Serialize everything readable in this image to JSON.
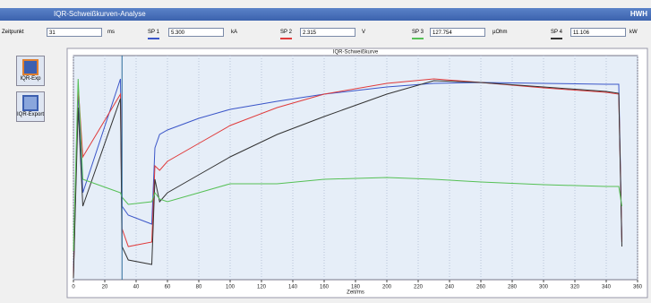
{
  "window": {
    "title": "IQR-Schweißkurven-Analyse",
    "corner": "HWH"
  },
  "fields": [
    {
      "label": "Zeitpunkt",
      "value": "31",
      "unit": "ms"
    },
    {
      "label": "SP 1",
      "value": "5.300",
      "unit": "kA"
    },
    {
      "label": "SP 2",
      "value": "2.315",
      "unit": "V"
    },
    {
      "label": "SP 3",
      "value": "127.754",
      "unit": "µOhm"
    },
    {
      "label": "SP 4",
      "value": "11.106",
      "unit": "kW"
    }
  ],
  "buttons": [
    "IQR-Exp",
    "IQR-Export"
  ],
  "chart_data": {
    "type": "line",
    "title": "IQR-Schweißkurve",
    "x_label": "Zeit/ms",
    "x": [
      0,
      3,
      6,
      30,
      31,
      35,
      50,
      52,
      55,
      60,
      80,
      100,
      130,
      160,
      200,
      230,
      260,
      300,
      340,
      348,
      350
    ],
    "series": [
      {
        "color": "#3a55c8",
        "values": [
          2.8,
          84.8,
          38.8,
          89.6,
          32.8,
          28.8,
          24.8,
          58.8,
          64.8,
          66.8,
          72,
          76,
          79.6,
          82.8,
          86,
          87.6,
          88,
          87.6,
          87.2,
          87.2,
          16.8
        ]
      },
      {
        "color": "#e03a3a",
        "values": [
          0.8,
          86.8,
          54.8,
          82.8,
          22.8,
          14.8,
          16.8,
          50.8,
          48.8,
          52.8,
          60.8,
          68.8,
          76.8,
          82.8,
          87.6,
          89.6,
          88,
          85.6,
          83.6,
          82.8,
          16.8
        ]
      },
      {
        "color": "#333333",
        "values": [
          0.8,
          76.8,
          32.8,
          80.8,
          14.8,
          8.8,
          6.8,
          44.8,
          34.8,
          38.8,
          46.8,
          54.8,
          64.8,
          72.8,
          82.8,
          88.8,
          88,
          86,
          84,
          83.2,
          14.8
        ]
      },
      {
        "color": "#55c055",
        "values": [
          12.8,
          89.6,
          44.8,
          38.8,
          36.8,
          33.6,
          34.8,
          38.8,
          36,
          34.8,
          38.8,
          42.8,
          42.8,
          44.8,
          45.6,
          44.8,
          43.6,
          42.4,
          41.6,
          41.6,
          32.8
        ]
      }
    ],
    "xlim": [
      0,
      360
    ],
    "ylim": [
      0,
      100
    ],
    "xticks": [
      0,
      20,
      40,
      60,
      80,
      100,
      120,
      140,
      160,
      180,
      200,
      220,
      240,
      260,
      280,
      300,
      320,
      340,
      360
    ],
    "grid": true
  }
}
